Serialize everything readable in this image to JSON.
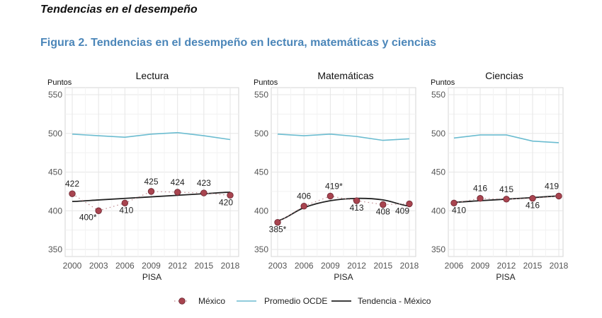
{
  "heading": "Tendencias en el desempeño",
  "figure_title": "Figura 2. Tendencias en el desempeño en lectura, matemáticas y ciencias",
  "colors": {
    "mexico": "#a8444f",
    "oecd": "#6bbcd0",
    "trend": "#222222",
    "title": "#4b86b9"
  },
  "legend": {
    "placement": "bottom",
    "items": [
      "México",
      "Promedio OCDE",
      "Tendencia - México"
    ]
  },
  "chart_data": [
    {
      "type": "line",
      "title": "Lectura",
      "ylabel": "Puntos",
      "xlabel": "PISA",
      "ylim": [
        340,
        560
      ],
      "yticks": [
        350,
        400,
        450,
        500,
        550
      ],
      "x": [
        2000,
        2003,
        2006,
        2009,
        2012,
        2015,
        2018
      ],
      "grid": true,
      "series": [
        {
          "name": "México",
          "values": [
            422,
            400,
            410,
            425,
            424,
            423,
            420
          ],
          "labels": [
            "422",
            "400*",
            "410",
            "425",
            "424",
            "423",
            "420"
          ]
        },
        {
          "name": "Promedio OCDE",
          "values": [
            499,
            497,
            495,
            499,
            501,
            497,
            492
          ]
        },
        {
          "name": "Tendencia - México",
          "values": [
            412,
            414,
            416,
            418,
            420,
            422,
            424
          ]
        }
      ]
    },
    {
      "type": "line",
      "title": "Matemáticas",
      "ylabel": "Puntos",
      "xlabel": "PISA",
      "ylim": [
        340,
        560
      ],
      "yticks": [
        350,
        400,
        450,
        500,
        550
      ],
      "x": [
        2003,
        2006,
        2009,
        2012,
        2015,
        2018
      ],
      "grid": true,
      "series": [
        {
          "name": "México",
          "values": [
            385,
            406,
            419,
            413,
            408,
            409
          ],
          "labels": [
            "385*",
            "406",
            "419*",
            "413",
            "408",
            "409"
          ]
        },
        {
          "name": "Promedio OCDE",
          "values": [
            499,
            497,
            499,
            496,
            491,
            493
          ]
        },
        {
          "name": "Tendencia - México",
          "values": [
            387,
            404,
            413,
            416,
            414,
            406
          ]
        }
      ]
    },
    {
      "type": "line",
      "title": "Ciencias",
      "ylabel": "Puntos",
      "xlabel": "PISA",
      "ylim": [
        340,
        560
      ],
      "yticks": [
        350,
        400,
        450,
        500,
        550
      ],
      "x": [
        2006,
        2009,
        2012,
        2015,
        2018
      ],
      "grid": true,
      "series": [
        {
          "name": "México",
          "values": [
            410,
            416,
            415,
            416,
            419
          ],
          "labels": [
            "410",
            "416",
            "415",
            "416",
            "419"
          ]
        },
        {
          "name": "Promedio OCDE",
          "values": [
            494,
            498,
            498,
            490,
            488
          ]
        },
        {
          "name": "Tendencia - México",
          "values": [
            411,
            413,
            415,
            417,
            419
          ]
        }
      ]
    }
  ]
}
